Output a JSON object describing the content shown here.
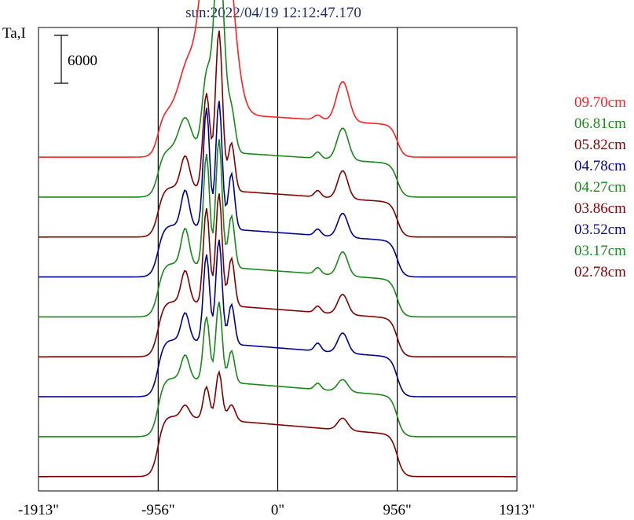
{
  "title": "sun:2022/04/19 12:12:47.170",
  "y_axis_label": "Ta,I",
  "scale_bar_label": "6000",
  "chart_data": {
    "type": "line",
    "title": "sun:2022/04/19 12:12:47.170",
    "ylabel": "Ta,I",
    "scale_bar_value": 6000,
    "xlim": [
      -1913,
      1913
    ],
    "x_ticks": [
      {
        "value": -1913,
        "label": "-1913\""
      },
      {
        "value": -956,
        "label": "-956\""
      },
      {
        "value": 0,
        "label": "0\""
      },
      {
        "value": 956,
        "label": "956\""
      },
      {
        "value": 1913,
        "label": "1913\""
      }
    ],
    "vertical_lines": [
      -956,
      0,
      956
    ],
    "legend_position": "right",
    "series": [
      {
        "name": "09.70cm",
        "color": "#ff2020",
        "baseline": 41500,
        "peaks": [
          {
            "x": -470,
            "amp": 33000,
            "w": 90
          },
          {
            "x": -590,
            "amp": 6000,
            "w": 50
          },
          {
            "x": -715,
            "amp": 6000,
            "w": 70
          },
          {
            "x": 520,
            "amp": 5000,
            "w": 50
          },
          {
            "x": 320,
            "amp": 600,
            "w": 30
          }
        ]
      },
      {
        "name": "06.81cm",
        "color": "#188818",
        "baseline": 36500,
        "peaks": [
          {
            "x": -470,
            "amp": 26000,
            "w": 40
          },
          {
            "x": -570,
            "amp": 9000,
            "w": 35
          },
          {
            "x": -370,
            "amp": 5000,
            "w": 30
          },
          {
            "x": -740,
            "amp": 4000,
            "w": 50
          },
          {
            "x": 520,
            "amp": 4000,
            "w": 45
          },
          {
            "x": 320,
            "amp": 800,
            "w": 25
          }
        ]
      },
      {
        "name": "05.82cm",
        "color": "#800000",
        "baseline": 31500,
        "peaks": [
          {
            "x": -470,
            "amp": 20000,
            "w": 28
          },
          {
            "x": -570,
            "amp": 12000,
            "w": 28
          },
          {
            "x": -370,
            "amp": 6000,
            "w": 26
          },
          {
            "x": -740,
            "amp": 4000,
            "w": 35
          },
          {
            "x": 520,
            "amp": 3500,
            "w": 40
          },
          {
            "x": 320,
            "amp": 800,
            "w": 25
          }
        ]
      },
      {
        "name": "04.78cm",
        "color": "#000090",
        "baseline": 26500,
        "peaks": [
          {
            "x": -470,
            "amp": 16000,
            "w": 25
          },
          {
            "x": -570,
            "amp": 15000,
            "w": 25
          },
          {
            "x": -370,
            "amp": 7000,
            "w": 25
          },
          {
            "x": -740,
            "amp": 4500,
            "w": 32
          },
          {
            "x": 520,
            "amp": 3000,
            "w": 40
          },
          {
            "x": 320,
            "amp": 800,
            "w": 25
          }
        ]
      },
      {
        "name": "04.27cm",
        "color": "#188818",
        "baseline": 21500,
        "peaks": [
          {
            "x": -470,
            "amp": 16000,
            "w": 25
          },
          {
            "x": -570,
            "amp": 14000,
            "w": 25
          },
          {
            "x": -370,
            "amp": 6500,
            "w": 25
          },
          {
            "x": -740,
            "amp": 4500,
            "w": 32
          },
          {
            "x": 520,
            "amp": 3000,
            "w": 40
          },
          {
            "x": 320,
            "amp": 800,
            "w": 25
          }
        ]
      },
      {
        "name": "03.86cm",
        "color": "#800000",
        "baseline": 16500,
        "peaks": [
          {
            "x": -470,
            "amp": 14000,
            "w": 25
          },
          {
            "x": -570,
            "amp": 12000,
            "w": 25
          },
          {
            "x": -370,
            "amp": 6000,
            "w": 25
          },
          {
            "x": -740,
            "amp": 4000,
            "w": 32
          },
          {
            "x": 520,
            "amp": 2500,
            "w": 40
          },
          {
            "x": 320,
            "amp": 800,
            "w": 25
          }
        ]
      },
      {
        "name": "03.52cm",
        "color": "#000090",
        "baseline": 11500,
        "peaks": [
          {
            "x": -470,
            "amp": 13000,
            "w": 25
          },
          {
            "x": -570,
            "amp": 11000,
            "w": 25
          },
          {
            "x": -370,
            "amp": 5000,
            "w": 25
          },
          {
            "x": -740,
            "amp": 3500,
            "w": 32
          },
          {
            "x": 520,
            "amp": 2500,
            "w": 40
          },
          {
            "x": 320,
            "amp": 1000,
            "w": 25
          }
        ]
      },
      {
        "name": "03.17cm",
        "color": "#188818",
        "baseline": 6500,
        "peaks": [
          {
            "x": -470,
            "amp": 10000,
            "w": 25
          },
          {
            "x": -570,
            "amp": 8000,
            "w": 25
          },
          {
            "x": -370,
            "amp": 4000,
            "w": 25
          },
          {
            "x": -740,
            "amp": 3000,
            "w": 32
          },
          {
            "x": 520,
            "amp": 1500,
            "w": 40
          },
          {
            "x": 320,
            "amp": 800,
            "w": 25
          }
        ]
      },
      {
        "name": "02.78cm",
        "color": "#800000",
        "baseline": 1500,
        "peaks": [
          {
            "x": -470,
            "amp": 6000,
            "w": 25
          },
          {
            "x": -570,
            "amp": 4000,
            "w": 25
          },
          {
            "x": -370,
            "amp": 2000,
            "w": 30
          },
          {
            "x": 520,
            "amp": 1500,
            "w": 40
          },
          {
            "x": -740,
            "amp": 1500,
            "w": 32
          }
        ]
      }
    ]
  }
}
